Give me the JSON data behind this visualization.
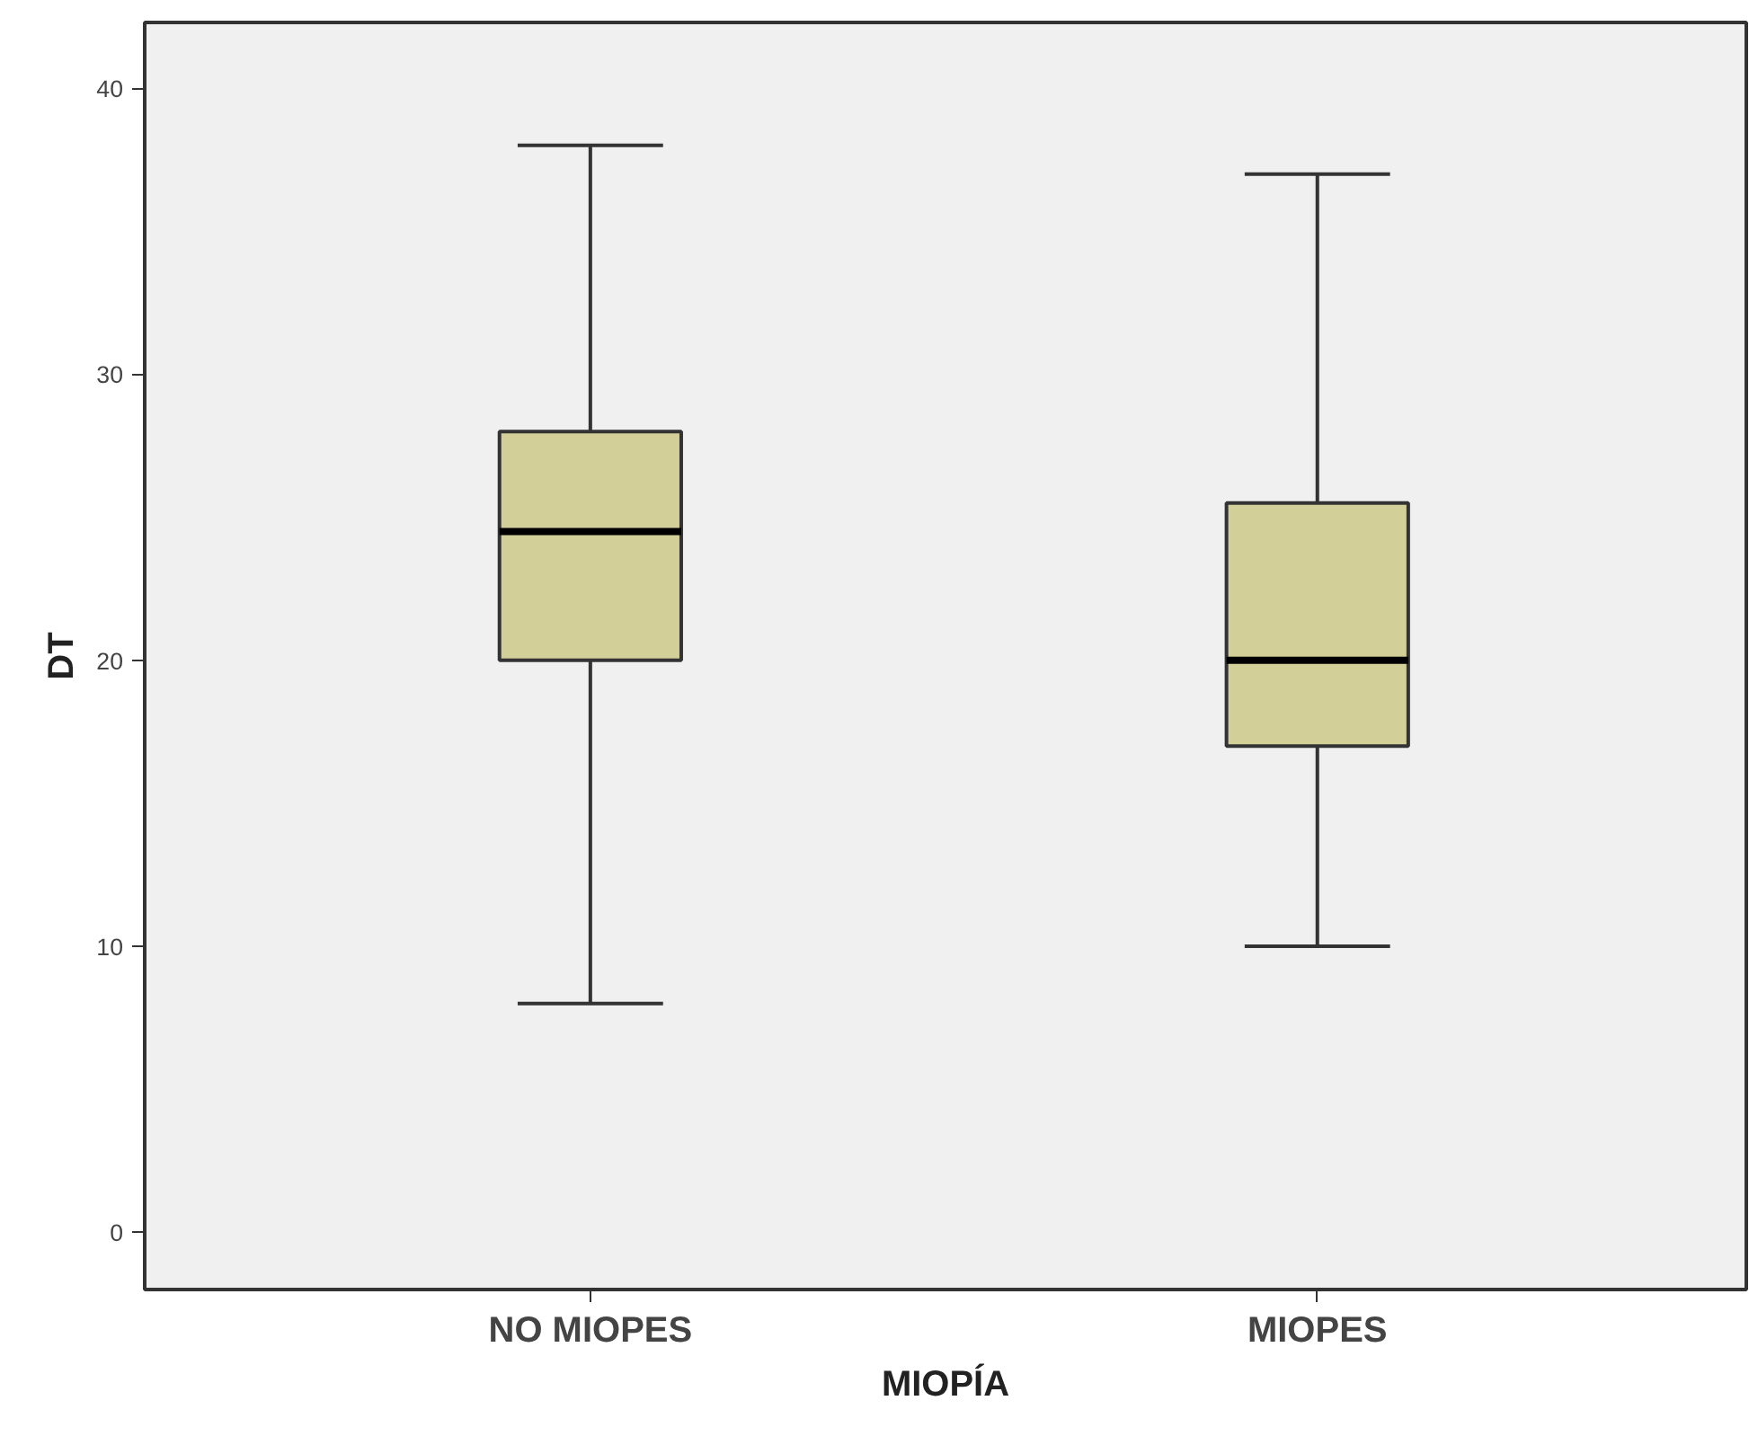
{
  "chart_data": {
    "type": "box",
    "xlabel": "MIOPÍA",
    "ylabel": "DT",
    "categories": [
      "NO MIOPES",
      "MIOPES"
    ],
    "series": [
      {
        "color": "#d3cf98",
        "boxes": [
          {
            "low": 8,
            "q1": 20,
            "median": 24.5,
            "q3": 28,
            "high": 38
          },
          {
            "low": 10,
            "q1": 17,
            "median": 20,
            "q3": 25.5,
            "high": 37
          }
        ]
      }
    ],
    "ylim": [
      -2,
      42.3
    ],
    "yticks": [
      0,
      10,
      20,
      30,
      40
    ],
    "grid": false
  }
}
